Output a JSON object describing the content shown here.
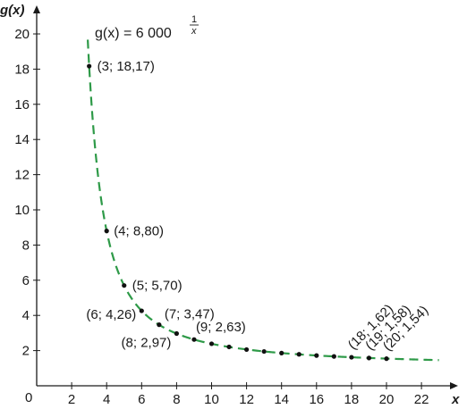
{
  "chart_data": {
    "type": "scatter",
    "title": "",
    "xlabel": "x",
    "ylabel": "g(x)",
    "origin_label": "0",
    "xlim": [
      0,
      24
    ],
    "ylim": [
      0,
      22
    ],
    "x_ticks": [
      2,
      4,
      6,
      8,
      10,
      12,
      14,
      16,
      18,
      20,
      22
    ],
    "y_ticks": [
      2,
      4,
      6,
      8,
      10,
      12,
      14,
      16,
      18,
      20
    ],
    "grid": false,
    "curve": {
      "formula_base": "g(x) = 6 000",
      "formula_exp_num": "1",
      "formula_exp_den": "x",
      "base": 6000,
      "x_range": [
        3,
        23
      ],
      "color": "#2e9a48",
      "style": "dashed"
    },
    "points": [
      {
        "x": 3,
        "y": 18.17,
        "label": "(3; 18,17)"
      },
      {
        "x": 4,
        "y": 8.8,
        "label": "(4; 8,80)"
      },
      {
        "x": 5,
        "y": 5.7,
        "label": "(5; 5,70)"
      },
      {
        "x": 6,
        "y": 4.26,
        "label": "(6; 4,26)"
      },
      {
        "x": 7,
        "y": 3.47,
        "label": "(7; 3,47)"
      },
      {
        "x": 8,
        "y": 2.97,
        "label": "(8; 2,97)"
      },
      {
        "x": 9,
        "y": 2.63,
        "label": "(9; 2,63)"
      },
      {
        "x": 10,
        "y": 2.39,
        "label": ""
      },
      {
        "x": 11,
        "y": 2.21,
        "label": ""
      },
      {
        "x": 12,
        "y": 2.06,
        "label": ""
      },
      {
        "x": 13,
        "y": 1.95,
        "label": ""
      },
      {
        "x": 14,
        "y": 1.86,
        "label": ""
      },
      {
        "x": 15,
        "y": 1.79,
        "label": ""
      },
      {
        "x": 16,
        "y": 1.72,
        "label": ""
      },
      {
        "x": 17,
        "y": 1.67,
        "label": ""
      },
      {
        "x": 18,
        "y": 1.62,
        "label": "(18; 1,62)"
      },
      {
        "x": 19,
        "y": 1.58,
        "label": "(19; 1,58)"
      },
      {
        "x": 20,
        "y": 1.54,
        "label": "(20; 1,54)"
      }
    ],
    "point_color": "#111111"
  }
}
